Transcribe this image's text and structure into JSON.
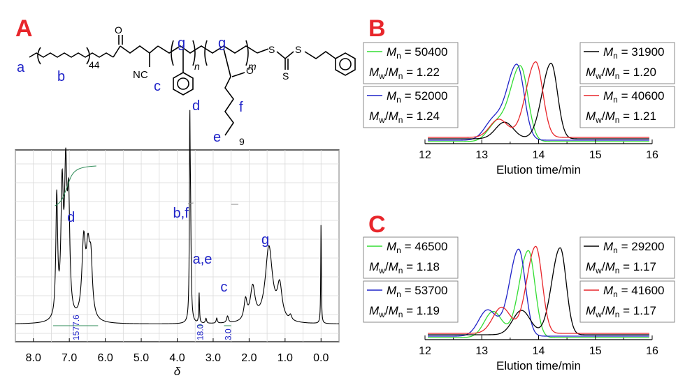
{
  "panel_letters": {
    "a": "A",
    "b": "B",
    "c": "C"
  },
  "structure": {
    "labels": [
      "a",
      "b",
      "44",
      "c",
      "NC",
      "g",
      "n",
      "g",
      "m",
      "d",
      "f",
      "e",
      "9",
      "S",
      "S",
      "S",
      "O",
      "O"
    ],
    "color": "#1f23c8"
  },
  "colors": {
    "black": "#000000",
    "red": "#e8262b",
    "green": "#33dd33",
    "blue": "#1f23c8",
    "grid": "#d9d9d9",
    "integral": "#2e8b57"
  },
  "chart_data": [
    {
      "id": "A",
      "type": "line",
      "xlabel": "δ",
      "x_reversed": true,
      "xlim": [
        8.5,
        -0.5
      ],
      "xticks": [
        8.0,
        7.0,
        6.0,
        5.0,
        4.0,
        3.0,
        2.0,
        1.0,
        0.0
      ],
      "xtick_labels": [
        "8.0",
        "7.0",
        "6.0",
        "5.0",
        "4.0",
        "3.0",
        "2.0",
        "1.0",
        "0.0"
      ],
      "grid": true,
      "peak_labels": [
        {
          "text": "d",
          "x": 6.95
        },
        {
          "text": "b,f",
          "x": 3.9
        },
        {
          "text": "a,e",
          "x": 3.3
        },
        {
          "text": "c",
          "x": 2.7
        },
        {
          "text": "g",
          "x": 1.55
        }
      ],
      "integrals": [
        {
          "value": "1577.6",
          "from": 7.45,
          "to": 6.2
        },
        {
          "value": "18.0",
          "from": 3.45,
          "to": 3.3
        },
        {
          "value": "3.0",
          "from": 2.7,
          "to": 2.5
        }
      ],
      "peaks": [
        {
          "x": 7.35,
          "h": 0.72,
          "w": 0.03
        },
        {
          "x": 7.2,
          "h": 0.75,
          "w": 0.04
        },
        {
          "x": 7.1,
          "h": 0.8,
          "w": 0.04
        },
        {
          "x": 7.02,
          "h": 0.65,
          "w": 0.04
        },
        {
          "x": 6.6,
          "h": 0.45,
          "w": 0.06
        },
        {
          "x": 6.48,
          "h": 0.36,
          "w": 0.06
        },
        {
          "x": 6.4,
          "h": 0.3,
          "w": 0.05
        },
        {
          "x": 3.65,
          "h": 1.0,
          "w": 0.012
        },
        {
          "x": 3.63,
          "h": 0.6,
          "w": 0.02
        },
        {
          "x": 3.39,
          "h": 0.18,
          "w": 0.012
        },
        {
          "x": 3.2,
          "h": 0.03,
          "w": 0.02
        },
        {
          "x": 2.9,
          "h": 0.03,
          "w": 0.02
        },
        {
          "x": 2.6,
          "h": 0.04,
          "w": 0.03
        },
        {
          "x": 2.1,
          "h": 0.12,
          "w": 0.05
        },
        {
          "x": 1.9,
          "h": 0.2,
          "w": 0.08
        },
        {
          "x": 1.45,
          "h": 0.45,
          "w": 0.12
        },
        {
          "x": 1.15,
          "h": 0.2,
          "w": 0.08
        },
        {
          "x": 0.85,
          "h": 0.03,
          "w": 0.04
        },
        {
          "x": 0.0,
          "h": 0.6,
          "w": 0.01
        }
      ]
    },
    {
      "id": "B",
      "type": "line",
      "xlabel": "Elution time/min",
      "xlim": [
        12,
        16
      ],
      "xticks": [
        12,
        13,
        14,
        15,
        16
      ],
      "grid": false,
      "series": [
        {
          "color": "#33dd33",
          "Mn": "50400",
          "PDI": "1.22",
          "peak": 13.68,
          "width": 0.37,
          "shoulder": 13.25,
          "shoulder_h": 0.22
        },
        {
          "color": "#1f23c8",
          "Mn": "52000",
          "PDI": "1.24",
          "peak": 13.62,
          "width": 0.36,
          "shoulder": 13.2,
          "shoulder_h": 0.25
        },
        {
          "color": "#000000",
          "Mn": "31900",
          "PDI": "1.20",
          "peak": 14.22,
          "width": 0.32,
          "shoulder": 13.4,
          "shoulder_h": 0.22
        },
        {
          "color": "#e8262b",
          "Mn": "40600",
          "PDI": "1.21",
          "peak": 13.95,
          "width": 0.35,
          "shoulder": 13.3,
          "shoulder_h": 0.24
        }
      ]
    },
    {
      "id": "C",
      "type": "line",
      "xlabel": "Elution time/min",
      "xlim": [
        12,
        16
      ],
      "xticks": [
        12,
        13,
        14,
        15,
        16
      ],
      "grid": false,
      "series": [
        {
          "color": "#33dd33",
          "Mn": "46500",
          "PDI": "1.18",
          "peak": 13.82,
          "width": 0.33,
          "shoulder": 13.2,
          "shoulder_h": 0.3
        },
        {
          "color": "#1f23c8",
          "Mn": "53700",
          "PDI": "1.19",
          "peak": 13.65,
          "width": 0.33,
          "shoulder": 13.1,
          "shoulder_h": 0.3
        },
        {
          "color": "#000000",
          "Mn": "29200",
          "PDI": "1.17",
          "peak": 14.38,
          "width": 0.3,
          "shoulder": 13.7,
          "shoulder_h": 0.28
        },
        {
          "color": "#e8262b",
          "Mn": "41600",
          "PDI": "1.17",
          "peak": 13.95,
          "width": 0.32,
          "shoulder": 13.35,
          "shoulder_h": 0.3
        }
      ]
    }
  ]
}
